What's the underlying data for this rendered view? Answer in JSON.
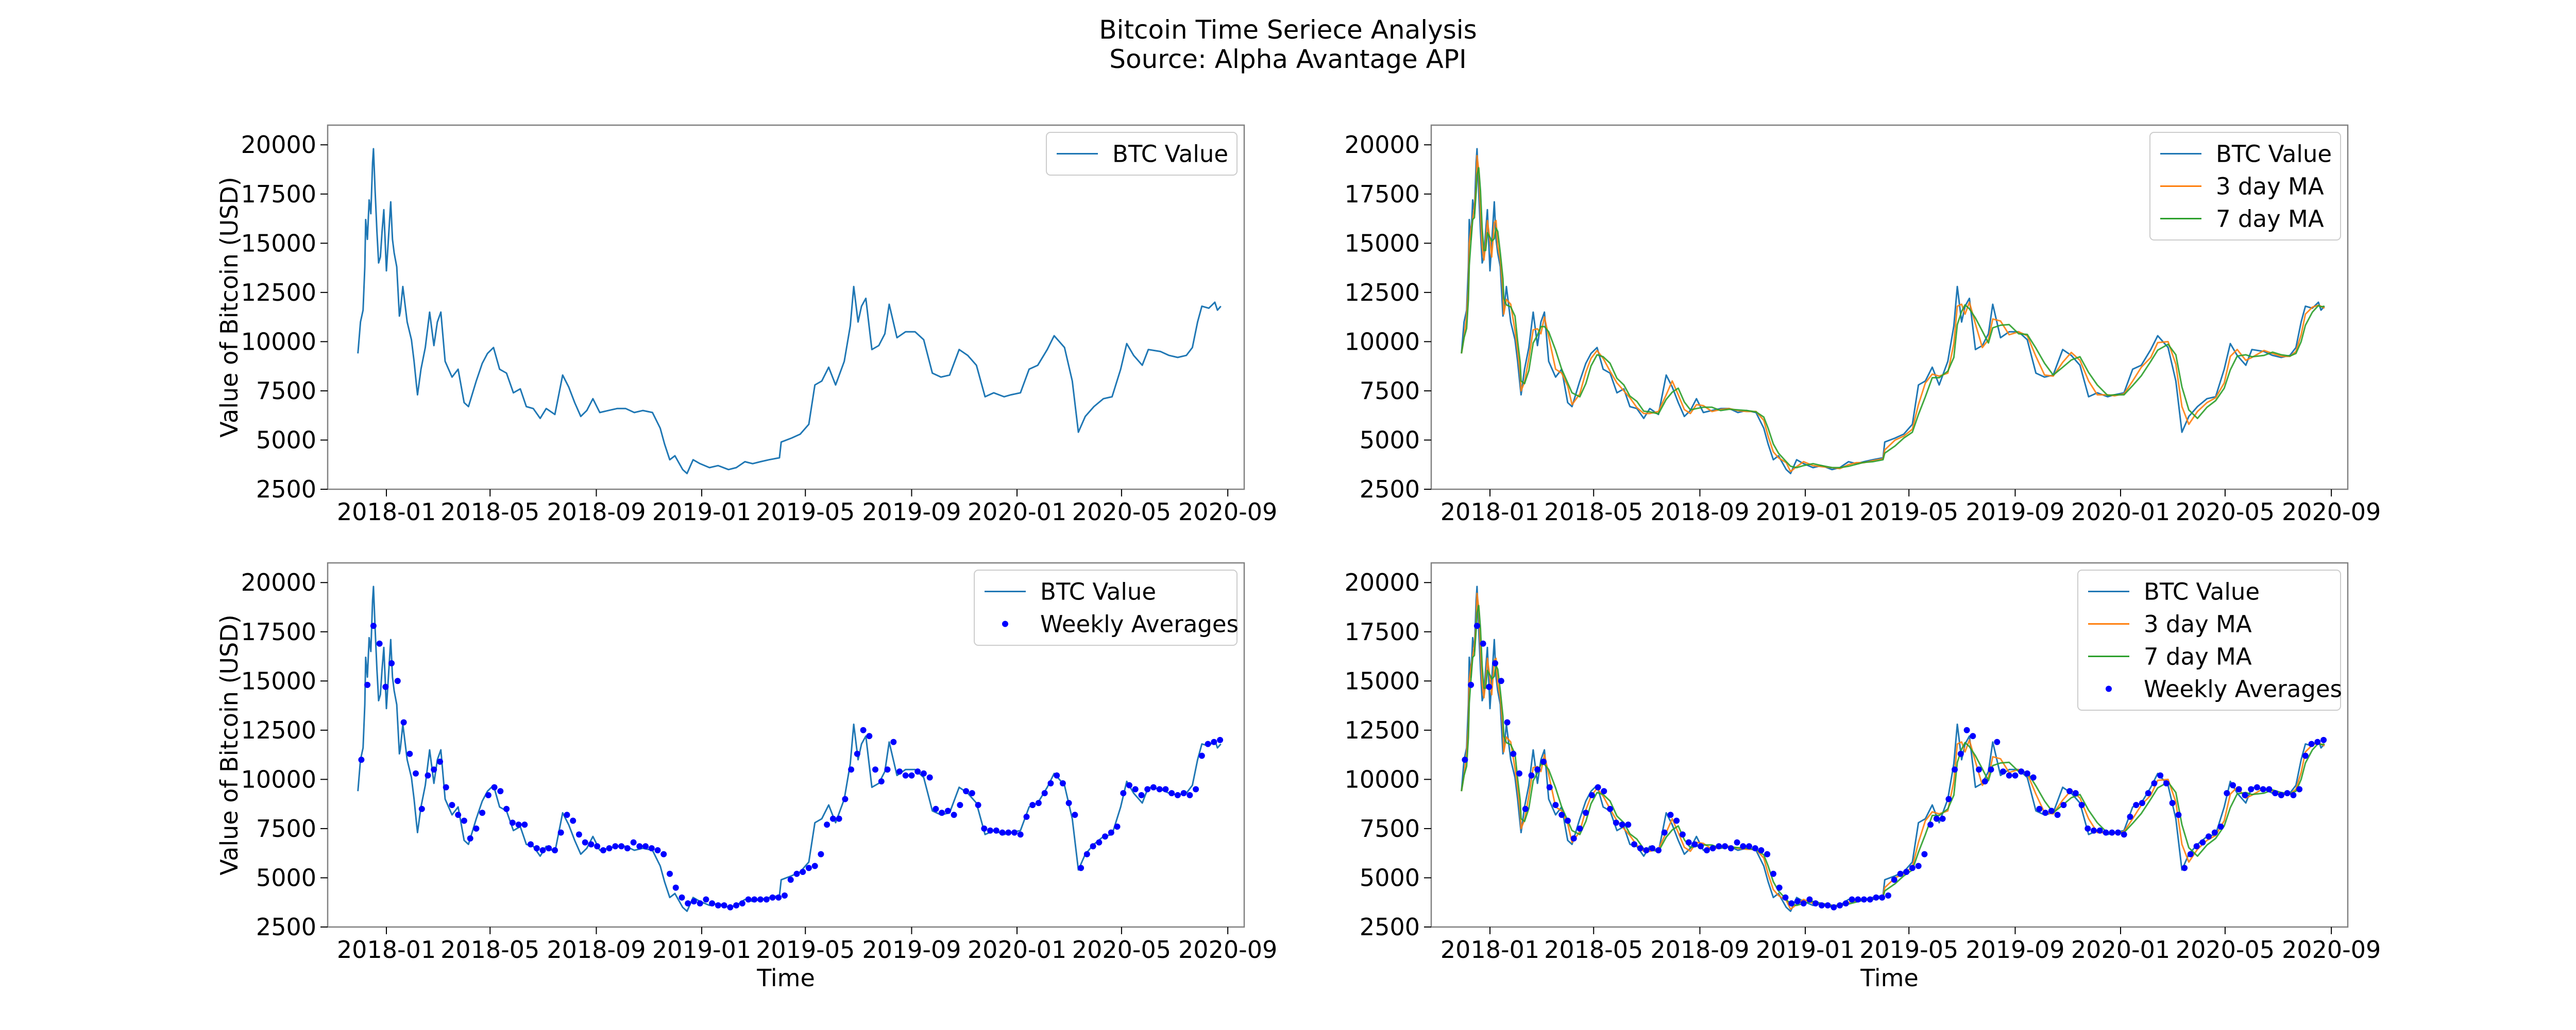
{
  "figure": {
    "title_line1": "Bitcoin Time Seriece Analysis",
    "title_line2": "Source: Alpha Avantage API"
  },
  "colors": {
    "btc": "#1f77b4",
    "ma3": "#ff7f0e",
    "ma7": "#2ca02c",
    "weekly": "#0000ff",
    "frame": "#808080"
  },
  "chart_data": [
    {
      "type": "line",
      "title": "",
      "xlabel": "",
      "ylabel": "Value of Bitcoin (USD)",
      "xlim": [
        "2017-10-25",
        "2020-09-20"
      ],
      "ylim": [
        2500,
        21000
      ],
      "x_ticks": [
        "2018-01",
        "2018-05",
        "2018-09",
        "2019-01",
        "2019-05",
        "2019-09",
        "2020-01",
        "2020-05",
        "2020-09"
      ],
      "y_ticks": [
        2500,
        5000,
        7500,
        10000,
        12500,
        15000,
        17500,
        20000
      ],
      "legend": "top-right",
      "series": [
        {
          "name": "BTC Value",
          "kind": "line"
        }
      ]
    },
    {
      "type": "line",
      "title": "",
      "xlabel": "",
      "ylabel": "",
      "xlim": [
        "2017-10-25",
        "2020-09-20"
      ],
      "ylim": [
        2500,
        21000
      ],
      "x_ticks": [
        "2018-01",
        "2018-05",
        "2018-09",
        "2019-01",
        "2019-05",
        "2019-09",
        "2020-01",
        "2020-05",
        "2020-09"
      ],
      "y_ticks": [
        2500,
        5000,
        7500,
        10000,
        12500,
        15000,
        17500,
        20000
      ],
      "legend": "top-right",
      "series": [
        {
          "name": "BTC Value",
          "kind": "line"
        },
        {
          "name": "3 day MA",
          "kind": "line"
        },
        {
          "name": "7 day MA",
          "kind": "line"
        }
      ]
    },
    {
      "type": "line",
      "title": "",
      "xlabel": "Time",
      "ylabel": "Value of Bitcoin (USD)",
      "xlim": [
        "2017-10-25",
        "2020-09-20"
      ],
      "ylim": [
        2500,
        21000
      ],
      "x_ticks": [
        "2018-01",
        "2018-05",
        "2018-09",
        "2019-01",
        "2019-05",
        "2019-09",
        "2020-01",
        "2020-05",
        "2020-09"
      ],
      "y_ticks": [
        2500,
        5000,
        7500,
        10000,
        12500,
        15000,
        17500,
        20000
      ],
      "legend": "top-right",
      "series": [
        {
          "name": "BTC Value",
          "kind": "line"
        },
        {
          "name": "Weekly Averages",
          "kind": "scatter"
        }
      ]
    },
    {
      "type": "line",
      "title": "",
      "xlabel": "Time",
      "ylabel": "",
      "xlim": [
        "2017-10-25",
        "2020-09-20"
      ],
      "ylim": [
        2500,
        21000
      ],
      "x_ticks": [
        "2018-01",
        "2018-05",
        "2018-09",
        "2019-01",
        "2019-05",
        "2019-09",
        "2020-01",
        "2020-05",
        "2020-09"
      ],
      "y_ticks": [
        2500,
        5000,
        7500,
        10000,
        12500,
        15000,
        17500,
        20000
      ],
      "legend": "top-right",
      "series": [
        {
          "name": "BTC Value",
          "kind": "line"
        },
        {
          "name": "3 day MA",
          "kind": "line"
        },
        {
          "name": "7 day MA",
          "kind": "line"
        },
        {
          "name": "Weekly Averages",
          "kind": "scatter"
        }
      ]
    }
  ],
  "btc_series": {
    "x": [
      "2017-11-29",
      "2017-12-02",
      "2017-12-05",
      "2017-12-07",
      "2017-12-08",
      "2017-12-10",
      "2017-12-12",
      "2017-12-14",
      "2017-12-16",
      "2017-12-17",
      "2017-12-19",
      "2017-12-21",
      "2017-12-23",
      "2017-12-25",
      "2017-12-27",
      "2017-12-29",
      "2018-01-01",
      "2018-01-03",
      "2018-01-06",
      "2018-01-08",
      "2018-01-10",
      "2018-01-13",
      "2018-01-16",
      "2018-01-17",
      "2018-01-20",
      "2018-01-25",
      "2018-01-30",
      "2018-02-02",
      "2018-02-05",
      "2018-02-06",
      "2018-02-10",
      "2018-02-15",
      "2018-02-20",
      "2018-02-25",
      "2018-03-01",
      "2018-03-05",
      "2018-03-10",
      "2018-03-18",
      "2018-03-25",
      "2018-04-01",
      "2018-04-06",
      "2018-04-15",
      "2018-04-22",
      "2018-04-28",
      "2018-05-05",
      "2018-05-12",
      "2018-05-20",
      "2018-05-28",
      "2018-06-05",
      "2018-06-12",
      "2018-06-20",
      "2018-06-28",
      "2018-07-05",
      "2018-07-15",
      "2018-07-24",
      "2018-07-31",
      "2018-08-07",
      "2018-08-14",
      "2018-08-21",
      "2018-08-28",
      "2018-09-05",
      "2018-09-15",
      "2018-09-25",
      "2018-10-05",
      "2018-10-15",
      "2018-10-25",
      "2018-11-05",
      "2018-11-14",
      "2018-11-19",
      "2018-11-25",
      "2018-12-01",
      "2018-12-10",
      "2018-12-15",
      "2018-12-22",
      "2018-12-30",
      "2019-01-10",
      "2019-01-20",
      "2019-02-01",
      "2019-02-10",
      "2019-02-20",
      "2019-03-01",
      "2019-03-10",
      "2019-03-20",
      "2019-04-01",
      "2019-04-03",
      "2019-04-15",
      "2019-04-25",
      "2019-05-05",
      "2019-05-12",
      "2019-05-20",
      "2019-05-28",
      "2019-06-05",
      "2019-06-15",
      "2019-06-22",
      "2019-06-26",
      "2019-07-01",
      "2019-07-05",
      "2019-07-10",
      "2019-07-17",
      "2019-07-25",
      "2019-08-01",
      "2019-08-06",
      "2019-08-15",
      "2019-08-25",
      "2019-09-05",
      "2019-09-15",
      "2019-09-25",
      "2019-10-05",
      "2019-10-15",
      "2019-10-26",
      "2019-11-05",
      "2019-11-15",
      "2019-11-25",
      "2019-12-05",
      "2019-12-17",
      "2019-12-25",
      "2020-01-05",
      "2020-01-15",
      "2020-01-25",
      "2020-02-05",
      "2020-02-13",
      "2020-02-25",
      "2020-03-05",
      "2020-03-12",
      "2020-03-20",
      "2020-03-30",
      "2020-04-10",
      "2020-04-20",
      "2020-04-30",
      "2020-05-07",
      "2020-05-15",
      "2020-05-25",
      "2020-06-01",
      "2020-06-15",
      "2020-06-25",
      "2020-07-05",
      "2020-07-15",
      "2020-07-22",
      "2020-07-28",
      "2020-08-02",
      "2020-08-10",
      "2020-08-17",
      "2020-08-20",
      "2020-08-24"
    ],
    "y": [
      9400,
      11000,
      11600,
      13800,
      16200,
      15200,
      17200,
      16500,
      19100,
      19800,
      17600,
      15600,
      14000,
      14300,
      15600,
      16700,
      13600,
      15000,
      17100,
      15200,
      14500,
      13800,
      11300,
      11500,
      12800,
      11000,
      10100,
      9000,
      7700,
      7300,
      8600,
      9700,
      11500,
      9800,
      11000,
      11500,
      9000,
      8200,
      8600,
      6900,
      6700,
      8000,
      8900,
      9400,
      9700,
      8600,
      8400,
      7400,
      7600,
      6700,
      6600,
      6100,
      6600,
      6300,
      8300,
      7700,
      6900,
      6200,
      6500,
      7100,
      6400,
      6500,
      6600,
      6600,
      6400,
      6500,
      6400,
      5600,
      4800,
      4000,
      4200,
      3500,
      3300,
      4000,
      3800,
      3600,
      3700,
      3500,
      3600,
      3900,
      3800,
      3900,
      4000,
      4100,
      4900,
      5100,
      5300,
      5800,
      7800,
      8000,
      8700,
      7800,
      9000,
      10800,
      12800,
      11000,
      11800,
      12200,
      9600,
      9800,
      10400,
      11900,
      10200,
      10500,
      10500,
      10100,
      8400,
      8200,
      8300,
      9600,
      9300,
      8800,
      7200,
      7400,
      7200,
      7300,
      7400,
      8600,
      8800,
      9600,
      10300,
      9700,
      8000,
      5400,
      6200,
      6700,
      7100,
      7200,
      8600,
      9900,
      9300,
      8800,
      9600,
      9500,
      9300,
      9200,
      9300,
      9700,
      11000,
      11800,
      11700,
      12000,
      11600,
      11800
    ]
  },
  "weekly_averages": {
    "x": [
      "2017-12-03",
      "2017-12-10",
      "2017-12-17",
      "2017-12-24",
      "2017-12-31",
      "2018-01-07",
      "2018-01-14",
      "2018-01-21",
      "2018-01-28",
      "2018-02-04",
      "2018-02-11",
      "2018-02-18",
      "2018-02-25",
      "2018-03-04",
      "2018-03-11",
      "2018-03-18",
      "2018-03-25",
      "2018-04-01",
      "2018-04-08",
      "2018-04-15",
      "2018-04-22",
      "2018-04-29",
      "2018-05-06",
      "2018-05-13",
      "2018-05-20",
      "2018-05-27",
      "2018-06-03",
      "2018-06-10",
      "2018-06-17",
      "2018-06-24",
      "2018-07-01",
      "2018-07-08",
      "2018-07-15",
      "2018-07-22",
      "2018-07-29",
      "2018-08-05",
      "2018-08-12",
      "2018-08-19",
      "2018-08-26",
      "2018-09-02",
      "2018-09-09",
      "2018-09-16",
      "2018-09-23",
      "2018-09-30",
      "2018-10-07",
      "2018-10-14",
      "2018-10-21",
      "2018-10-28",
      "2018-11-04",
      "2018-11-11",
      "2018-11-18",
      "2018-11-25",
      "2018-12-02",
      "2018-12-09",
      "2018-12-16",
      "2018-12-23",
      "2018-12-30",
      "2019-01-06",
      "2019-01-13",
      "2019-01-20",
      "2019-01-27",
      "2019-02-03",
      "2019-02-10",
      "2019-02-17",
      "2019-02-24",
      "2019-03-03",
      "2019-03-10",
      "2019-03-17",
      "2019-03-24",
      "2019-03-31",
      "2019-04-07",
      "2019-04-14",
      "2019-04-21",
      "2019-04-28",
      "2019-05-05",
      "2019-05-12",
      "2019-05-19",
      "2019-05-26",
      "2019-06-02",
      "2019-06-09",
      "2019-06-16",
      "2019-06-23",
      "2019-06-30",
      "2019-07-07",
      "2019-07-14",
      "2019-07-21",
      "2019-07-28",
      "2019-08-04",
      "2019-08-11",
      "2019-08-18",
      "2019-08-25",
      "2019-09-01",
      "2019-09-08",
      "2019-09-15",
      "2019-09-22",
      "2019-09-29",
      "2019-10-06",
      "2019-10-13",
      "2019-10-20",
      "2019-10-27",
      "2019-11-03",
      "2019-11-10",
      "2019-11-17",
      "2019-11-24",
      "2019-12-01",
      "2019-12-08",
      "2019-12-15",
      "2019-12-22",
      "2019-12-29",
      "2020-01-05",
      "2020-01-12",
      "2020-01-19",
      "2020-01-26",
      "2020-02-02",
      "2020-02-09",
      "2020-02-16",
      "2020-02-23",
      "2020-03-01",
      "2020-03-08",
      "2020-03-15",
      "2020-03-22",
      "2020-03-29",
      "2020-04-05",
      "2020-04-12",
      "2020-04-19",
      "2020-04-26",
      "2020-05-03",
      "2020-05-10",
      "2020-05-17",
      "2020-05-24",
      "2020-05-31",
      "2020-06-07",
      "2020-06-14",
      "2020-06-21",
      "2020-06-28",
      "2020-07-05",
      "2020-07-12",
      "2020-07-19",
      "2020-07-26",
      "2020-08-02",
      "2020-08-09",
      "2020-08-16",
      "2020-08-23"
    ],
    "y": [
      11000,
      14800,
      17800,
      16900,
      14700,
      15900,
      15000,
      12900,
      11300,
      10300,
      8500,
      10200,
      10500,
      10900,
      9600,
      8700,
      8200,
      7900,
      7000,
      7500,
      8300,
      9200,
      9600,
      9400,
      8500,
      7800,
      7700,
      7700,
      6700,
      6500,
      6400,
      6500,
      6400,
      7300,
      8200,
      7900,
      7200,
      6800,
      6700,
      6600,
      6400,
      6500,
      6600,
      6600,
      6500,
      6800,
      6600,
      6600,
      6500,
      6400,
      6200,
      5200,
      4500,
      4000,
      3700,
      3800,
      3700,
      3900,
      3700,
      3600,
      3600,
      3500,
      3600,
      3700,
      3900,
      3900,
      3900,
      3900,
      4000,
      4000,
      4100,
      4900,
      5200,
      5300,
      5500,
      5600,
      6200,
      7700,
      8000,
      8000,
      9000,
      10500,
      11300,
      12500,
      12200,
      10500,
      9900,
      10500,
      11900,
      10400,
      10200,
      10200,
      10400,
      10300,
      10100,
      8500,
      8300,
      8400,
      8200,
      8700,
      9400,
      9300,
      8700,
      7500,
      7400,
      7400,
      7300,
      7300,
      7300,
      7200,
      8100,
      8700,
      8800,
      9300,
      9800,
      10200,
      9800,
      8800,
      8200,
      5500,
      6200,
      6600,
      6800,
      7100,
      7300,
      7600,
      9300,
      9700,
      9500,
      9200,
      9500,
      9600,
      9500,
      9500,
      9300,
      9200,
      9300,
      9200,
      9500,
      11200,
      11800,
      11900,
      12000
    ]
  }
}
